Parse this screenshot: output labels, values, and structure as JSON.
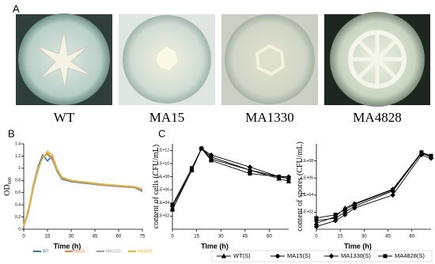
{
  "panel_a": {
    "label": "A",
    "photos": [
      "WT",
      "MA15",
      "MA1330",
      "MA4828"
    ]
  },
  "chart_data": [
    {
      "type": "line",
      "panel_label": "B",
      "xlabel": "Time (h)",
      "ylabel": "OD",
      "ylabel_subscript": "600",
      "x": [
        0,
        3,
        6,
        9,
        12,
        15,
        18,
        21,
        24,
        30,
        40,
        50,
        60,
        70,
        75
      ],
      "xlim": [
        0,
        75
      ],
      "xticks": [
        0,
        15,
        30,
        45,
        60,
        75
      ],
      "ylim": [
        0,
        1.4
      ],
      "yticks": [
        0,
        0.2,
        0.4,
        0.6,
        0.8,
        1,
        1.2,
        1.4
      ],
      "series": [
        {
          "name": "WT",
          "color": "#2e75c9",
          "values": [
            0.05,
            0.32,
            0.72,
            1.02,
            1.22,
            1.12,
            1.2,
            0.95,
            0.82,
            0.78,
            0.75,
            0.72,
            0.7,
            0.68,
            0.62
          ]
        },
        {
          "name": "MA15",
          "color": "#ed7d31",
          "values": [
            0.04,
            0.3,
            0.68,
            0.98,
            1.18,
            1.25,
            1.16,
            0.98,
            0.84,
            0.8,
            0.76,
            0.73,
            0.71,
            0.69,
            0.64
          ]
        },
        {
          "name": "MA1330",
          "color": "#9e9e9e",
          "values": [
            0.05,
            0.28,
            0.66,
            0.96,
            1.2,
            1.22,
            1.14,
            0.96,
            0.83,
            0.79,
            0.76,
            0.72,
            0.7,
            0.68,
            0.63
          ]
        },
        {
          "name": "MA4828",
          "color": "#f2b91c",
          "values": [
            0.06,
            0.34,
            0.7,
            1.0,
            1.16,
            1.28,
            1.22,
            1.0,
            0.86,
            0.8,
            0.77,
            0.74,
            0.72,
            0.7,
            0.66
          ]
        }
      ]
    },
    {
      "type": "line",
      "panel_label": "C",
      "log_scale": true,
      "xlabel": "Time (h)",
      "ylabel": "content of cells (CFU/mL)",
      "x": [
        0,
        12,
        18,
        24,
        48,
        66,
        72
      ],
      "xlim": [
        0,
        72
      ],
      "xticks": [
        0,
        15,
        30,
        45,
        60
      ],
      "ylim": [
        1,
        10000000000000
      ],
      "yticks": [
        {
          "value": 100,
          "label": "1.E+02"
        },
        {
          "value": 10000,
          "label": "1.E+04"
        },
        {
          "value": 1000000,
          "label": "1.E+06"
        },
        {
          "value": 100000000,
          "label": "1.E+08"
        },
        {
          "value": 10000000000,
          "label": "1.E+10"
        },
        {
          "value": 1000000000000,
          "label": "1.E+12"
        }
      ],
      "series": [
        {
          "name": "WT(S)",
          "color": "#000000",
          "marker": "triangle",
          "values": [
            1000,
            1000000000,
            2000000000000,
            50000000000,
            1000000000,
            50000000,
            20000000
          ]
        },
        {
          "name": "MA15(S)",
          "color": "#000000",
          "marker": "circle",
          "values": [
            1000,
            1000000000,
            2000000000000,
            100000000000,
            1000000000,
            100000000,
            50000000
          ]
        },
        {
          "name": "MA1330(S)",
          "color": "#000000",
          "marker": "diamond",
          "values": [
            3000,
            1000000000,
            2000000000000,
            200000000000,
            3000000000,
            100000000,
            100000000
          ]
        },
        {
          "name": "MA4828(S)",
          "color": "#000000",
          "marker": "square",
          "values": [
            5000,
            2000000000,
            2000000000000,
            30000000000,
            300000000,
            100000000,
            50000000
          ]
        }
      ]
    },
    {
      "type": "line",
      "log_scale": true,
      "xlabel": "Time (h)",
      "ylabel": "content of spores (CFU/mL)",
      "x": [
        0,
        12,
        18,
        24,
        48,
        66,
        72
      ],
      "xlim": [
        0,
        72
      ],
      "xticks": [
        0,
        15,
        30,
        45,
        60
      ],
      "ylim": [
        1,
        10000000000
      ],
      "yticks": [
        {
          "value": 100,
          "label": "1.E+02"
        },
        {
          "value": 10000,
          "label": "1.E+04"
        },
        {
          "value": 1000000,
          "label": "1.E+06"
        },
        {
          "value": 100000000,
          "label": "1.E+08"
        }
      ],
      "series": [
        {
          "color": "#000000",
          "marker": "triangle",
          "values": [
            5,
            30,
            300,
            1000,
            50000,
            1000000000,
            300000000
          ]
        },
        {
          "color": "#000000",
          "marker": "circle",
          "values": [
            10,
            20,
            100,
            500,
            30000,
            800000000,
            300000000
          ]
        },
        {
          "color": "#000000",
          "marker": "diamond",
          "values": [
            2,
            10,
            50,
            300,
            10000,
            500000000,
            200000000
          ]
        },
        {
          "color": "#000000",
          "marker": "square",
          "values": [
            20,
            50,
            200,
            800,
            40000,
            1000000000,
            400000000
          ]
        }
      ]
    }
  ]
}
